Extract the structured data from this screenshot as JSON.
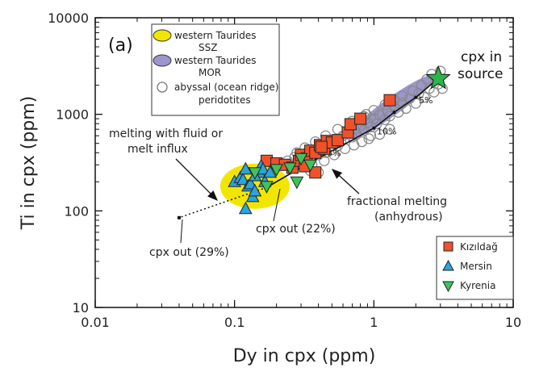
{
  "chart_data": {
    "type": "scatter",
    "panel_label": "(a)",
    "xlabel": "Dy in cpx (ppm)",
    "ylabel": "Ti in cpx (ppm)",
    "x_scale": "log",
    "y_scale": "log",
    "xlim": [
      0.01,
      10
    ],
    "ylim": [
      10,
      10000
    ],
    "x_ticks": [
      {
        "value": 0.01,
        "label": "0.01"
      },
      {
        "value": 0.1,
        "label": "0.1"
      },
      {
        "value": 1,
        "label": "1"
      },
      {
        "value": 10,
        "label": "10"
      }
    ],
    "y_ticks": [
      {
        "value": 10,
        "label": "10"
      },
      {
        "value": 100,
        "label": "100"
      },
      {
        "value": 1000,
        "label": "1000"
      },
      {
        "value": 10000,
        "label": "10000"
      }
    ],
    "legend_fields": {
      "entries": [
        {
          "label": "western Taurides",
          "sublabel": "SSZ",
          "color": "#f2e600"
        },
        {
          "label": "western Taurides",
          "sublabel": "MOR",
          "color": "#9b96cc"
        },
        {
          "label": "abyssal (ocean ridge)",
          "sublabel": "peridotites",
          "color": "#ffffff"
        }
      ]
    },
    "legend_points": {
      "entries": [
        {
          "label": "Kızıldağ",
          "color": "#f0512a",
          "marker": "square"
        },
        {
          "label": "Mersin",
          "color": "#2ba3dc",
          "marker": "triangle-up"
        },
        {
          "label": "Kyrenia",
          "color": "#3ec35b",
          "marker": "triangle-down"
        }
      ]
    },
    "fields": [
      {
        "name": "western Taurides SSZ",
        "color": "#f2e600",
        "cx": 0.14,
        "cy": 180
      },
      {
        "name": "western Taurides MOR",
        "color": "#9b96cc",
        "from": [
          0.75,
          650
        ],
        "to": [
          2.4,
          2200
        ]
      }
    ],
    "source": {
      "label": "cpx in source",
      "x": 2.9,
      "y": 2350,
      "color": "#2fb34a"
    },
    "fractional_melting": {
      "points": [
        [
          2.9,
          2350
        ],
        [
          2.0,
          1500
        ],
        [
          1.4,
          1050
        ],
        [
          1.0,
          720
        ],
        [
          0.6,
          480
        ],
        [
          0.35,
          320
        ],
        [
          0.17,
          175
        ]
      ],
      "labels": [
        {
          "text": "5%",
          "x": 2.1,
          "y": 1300
        },
        {
          "text": "10%",
          "x": 1.05,
          "y": 620
        },
        {
          "text": "15%",
          "x": 0.42,
          "y": 370
        }
      ]
    },
    "fluid_melting": {
      "points": [
        [
          0.17,
          175
        ],
        [
          0.04,
          85
        ]
      ]
    },
    "annotations": {
      "melting_fluid_line1": "melting with fluid or",
      "melting_fluid_line2": "melt influx",
      "fractional_line1": "fractional melting",
      "fractional_line2": "(anhydrous)",
      "cpx_out_22": "cpx out (22%)",
      "cpx_out_29": "cpx out (29%)",
      "source_line1": "cpx in",
      "source_line2": "source"
    },
    "series": [
      {
        "name": "abyssal (ocean ridge) peridotites",
        "marker": "circle-open",
        "points": [
          [
            0.24,
            330
          ],
          [
            0.27,
            360
          ],
          [
            0.3,
            310
          ],
          [
            0.33,
            400
          ],
          [
            0.35,
            350
          ],
          [
            0.38,
            420
          ],
          [
            0.4,
            380
          ],
          [
            0.42,
            460
          ],
          [
            0.45,
            400
          ],
          [
            0.48,
            500
          ],
          [
            0.5,
            430
          ],
          [
            0.52,
            550
          ],
          [
            0.55,
            470
          ],
          [
            0.58,
            520
          ],
          [
            0.6,
            600
          ],
          [
            0.62,
            560
          ],
          [
            0.65,
            640
          ],
          [
            0.7,
            580
          ],
          [
            0.72,
            700
          ],
          [
            0.75,
            620
          ],
          [
            0.8,
            760
          ],
          [
            0.85,
            680
          ],
          [
            0.9,
            820
          ],
          [
            0.95,
            740
          ],
          [
            1.0,
            900
          ],
          [
            1.05,
            800
          ],
          [
            1.1,
            980
          ],
          [
            1.2,
            880
          ],
          [
            1.25,
            1080
          ],
          [
            1.3,
            960
          ],
          [
            1.4,
            1200
          ],
          [
            1.5,
            1050
          ],
          [
            1.6,
            1300
          ],
          [
            1.7,
            1150
          ],
          [
            1.8,
            1450
          ],
          [
            2.0,
            1300
          ],
          [
            2.1,
            1650
          ],
          [
            2.3,
            1500
          ],
          [
            2.5,
            1850
          ],
          [
            2.7,
            1700
          ],
          [
            2.9,
            2050
          ],
          [
            3.1,
            1850
          ],
          [
            2.6,
            2600
          ],
          [
            3.0,
            2800
          ],
          [
            2.4,
            2300
          ],
          [
            2.2,
            2000
          ],
          [
            1.9,
            1750
          ],
          [
            1.6,
            1550
          ],
          [
            1.4,
            1400
          ],
          [
            1.2,
            1250
          ],
          [
            1.0,
            1100
          ],
          [
            0.85,
            950
          ],
          [
            0.7,
            850
          ],
          [
            0.55,
            700
          ],
          [
            0.45,
            600
          ],
          [
            0.38,
            520
          ],
          [
            0.32,
            450
          ],
          [
            0.28,
            400
          ],
          [
            0.36,
            300
          ],
          [
            0.44,
            330
          ],
          [
            0.52,
            380
          ],
          [
            0.62,
            440
          ],
          [
            0.72,
            480
          ],
          [
            0.82,
            520
          ],
          [
            0.92,
            560
          ],
          [
            1.3,
            700
          ],
          [
            1.1,
            620
          ],
          [
            0.95,
            600
          ],
          [
            0.68,
            760
          ],
          [
            0.78,
            880
          ],
          [
            0.88,
            1000
          ],
          [
            0.35,
            260
          ],
          [
            0.4,
            250
          ]
        ]
      },
      {
        "name": "Kızıldağ",
        "marker": "square",
        "color": "#f0512a",
        "points": [
          [
            0.17,
            330
          ],
          [
            0.2,
            310
          ],
          [
            0.23,
            300
          ],
          [
            0.26,
            280
          ],
          [
            0.29,
            330
          ],
          [
            0.3,
            380
          ],
          [
            0.33,
            350
          ],
          [
            0.35,
            420
          ],
          [
            0.38,
            400
          ],
          [
            0.41,
            480
          ],
          [
            0.44,
            440
          ],
          [
            0.46,
            530
          ],
          [
            0.5,
            510
          ],
          [
            0.55,
            540
          ],
          [
            0.65,
            650
          ],
          [
            0.68,
            790
          ],
          [
            0.8,
            900
          ],
          [
            1.3,
            1400
          ],
          [
            0.32,
            290
          ],
          [
            0.38,
            250
          ],
          [
            0.42,
            460
          ]
        ]
      },
      {
        "name": "Mersin",
        "marker": "triangle-up",
        "color": "#2ba3dc",
        "points": [
          [
            0.1,
            200
          ],
          [
            0.11,
            220
          ],
          [
            0.115,
            210
          ],
          [
            0.12,
            270
          ],
          [
            0.125,
            180
          ],
          [
            0.13,
            190
          ],
          [
            0.135,
            140
          ],
          [
            0.14,
            160
          ],
          [
            0.15,
            250
          ],
          [
            0.155,
            290
          ],
          [
            0.16,
            270
          ],
          [
            0.165,
            200
          ],
          [
            0.18,
            250
          ],
          [
            0.12,
            105
          ],
          [
            0.14,
            230
          ]
        ]
      },
      {
        "name": "Kyrenia",
        "marker": "triangle-down",
        "color": "#3ec35b",
        "points": [
          [
            0.14,
            250
          ],
          [
            0.17,
            180
          ],
          [
            0.2,
            270
          ],
          [
            0.25,
            280
          ],
          [
            0.28,
            200
          ],
          [
            0.3,
            350
          ],
          [
            0.35,
            300
          ]
        ]
      }
    ]
  }
}
